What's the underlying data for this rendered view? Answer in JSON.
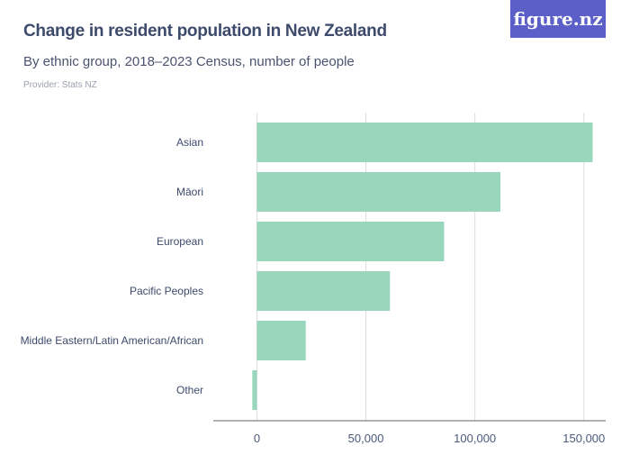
{
  "title": "Change in resident population in New Zealand",
  "subtitle": "By ethnic group, 2018–2023 Census, number of people",
  "provider": "Provider: Stats NZ",
  "logo": "figure.nz",
  "chart_data": {
    "type": "bar",
    "orientation": "horizontal",
    "categories": [
      "Asian",
      "Māori",
      "European",
      "Pacific Peoples",
      "Middle Eastern/Latin American/African",
      "Other"
    ],
    "values": [
      154000,
      111700,
      85900,
      61000,
      22400,
      -2100
    ],
    "xlim": [
      -20000,
      160000
    ],
    "xticks": [
      0,
      50000,
      100000,
      150000
    ],
    "xtick_labels": [
      "0",
      "50,000",
      "100,000",
      "150,000"
    ],
    "grid": true,
    "bar_color": "#98d7bb"
  }
}
